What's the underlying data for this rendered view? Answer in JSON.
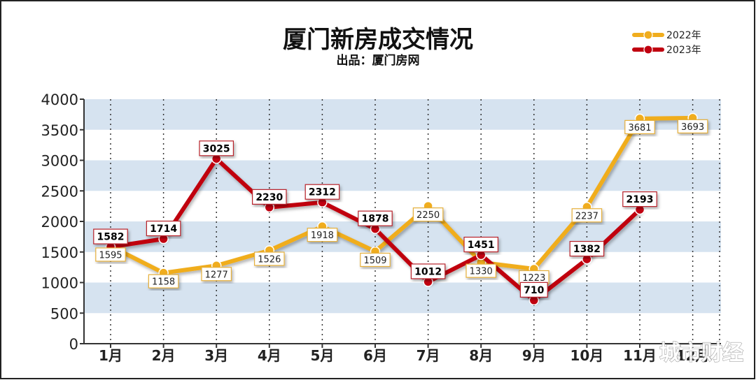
{
  "chart_data": {
    "type": "line",
    "title": "厦门新房成交情况",
    "subtitle": "出品：厦门房网",
    "categories": [
      "1月",
      "2月",
      "3月",
      "4月",
      "5月",
      "6月",
      "7月",
      "8月",
      "9月",
      "10月",
      "11月",
      "12月"
    ],
    "ylim": [
      0,
      4000
    ],
    "yticks": [
      "0",
      "500",
      "1000",
      "1500",
      "2000",
      "2500",
      "3000",
      "3500",
      "4000"
    ],
    "grid": "alternating horizontal bands, dotted vertical lines",
    "legend_position": "top-right",
    "series": [
      {
        "name": "2022年",
        "color": "#f0ad1e",
        "values": [
          1595,
          1158,
          1277,
          1526,
          1918,
          1509,
          2250,
          1330,
          1223,
          2237,
          3681,
          3693
        ]
      },
      {
        "name": "2023年",
        "color": "#c00010",
        "values": [
          1582,
          1714,
          3025,
          2230,
          2312,
          1878,
          1012,
          1451,
          710,
          1382,
          2193,
          null
        ]
      }
    ]
  },
  "watermark": "城市财经"
}
